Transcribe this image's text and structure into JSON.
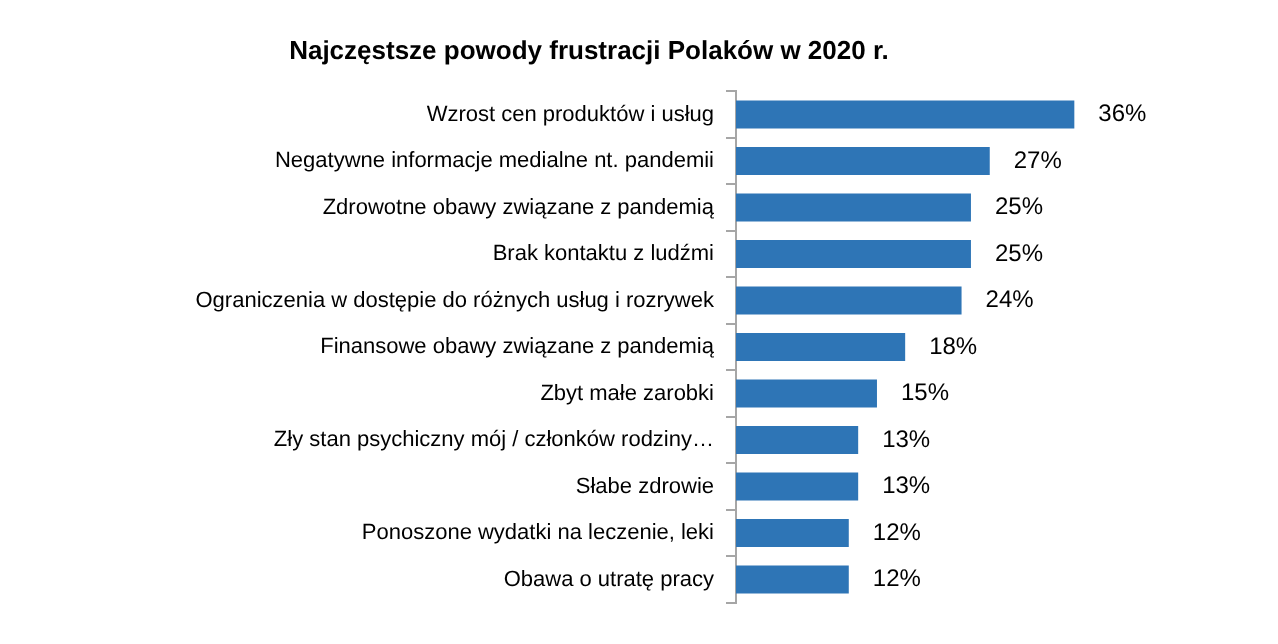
{
  "chart_data": {
    "type": "bar",
    "orientation": "horizontal",
    "title": "Najczęstsze powody frustracji Polaków w 2020 r.",
    "categories": [
      "Wzrost cen produktów i usług",
      "Negatywne informacje medialne nt. pandemii",
      "Zdrowotne obawy związane z pandemią",
      "Brak kontaktu z ludźmi",
      "Ograniczenia w dostępie do różnych usług i rozrywek",
      "Finansowe obawy związane z pandemią",
      "Zbyt małe zarobki",
      "Zły stan psychiczny mój / członków rodziny…",
      "Słabe zdrowie",
      "Ponoszone wydatki na leczenie, leki",
      "Obawa o utratę pracy"
    ],
    "values": [
      36,
      27,
      25,
      25,
      24,
      18,
      15,
      13,
      13,
      12,
      12
    ],
    "value_labels": [
      "36%",
      "27%",
      "25%",
      "25%",
      "24%",
      "18%",
      "15%",
      "13%",
      "13%",
      "12%",
      "12%"
    ],
    "color": "#2e75b6",
    "grid": false,
    "legend": false
  }
}
